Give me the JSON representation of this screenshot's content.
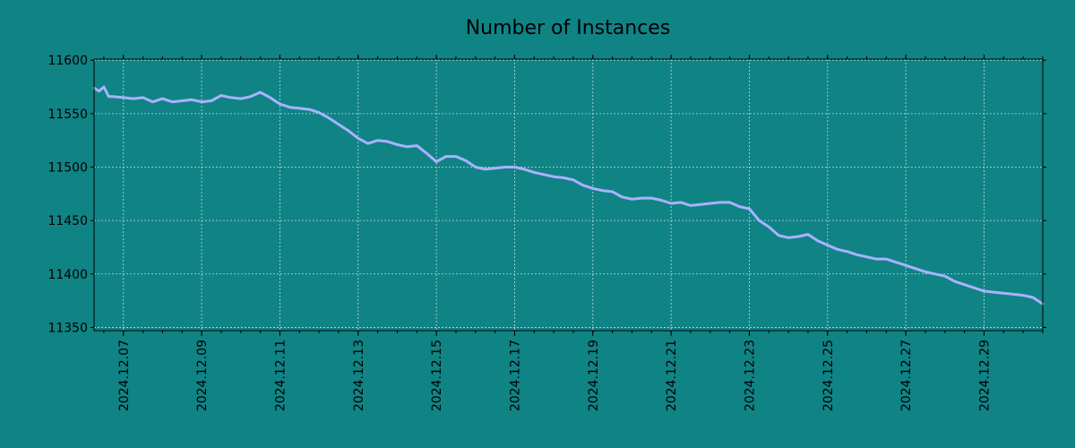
{
  "chart_data": {
    "type": "line",
    "title": "Number of Instances",
    "xlabel": "",
    "ylabel": "",
    "grid": true,
    "x_range": [
      "2024-12-06 06:00",
      "2024-12-30 12:00"
    ],
    "ylim": [
      11347,
      11601
    ],
    "y_ticks": [
      11350,
      11400,
      11450,
      11500,
      11550,
      11600
    ],
    "x_ticks": [
      "2024.12.07",
      "2024.12.09",
      "2024.12.11",
      "2024.12.13",
      "2024.12.15",
      "2024.12.17",
      "2024.12.19",
      "2024.12.21",
      "2024.12.23",
      "2024.12.25",
      "2024.12.27",
      "2024.12.29"
    ],
    "line_color": "#a9b2ff",
    "background_color": "#108385",
    "series": [
      {
        "x": [
          "2024-12-06 06:00",
          "2024-12-06 09:00",
          "2024-12-06 12:00",
          "2024-12-06 15:00",
          "2024-12-06 18:00",
          "2024-12-07 00:00",
          "2024-12-07 06:00",
          "2024-12-07 12:00",
          "2024-12-07 18:00",
          "2024-12-08 00:00",
          "2024-12-08 06:00",
          "2024-12-08 12:00",
          "2024-12-08 18:00",
          "2024-12-09 00:00",
          "2024-12-09 06:00",
          "2024-12-09 12:00",
          "2024-12-09 18:00",
          "2024-12-10 00:00",
          "2024-12-10 06:00",
          "2024-12-10 12:00",
          "2024-12-10 18:00",
          "2024-12-11 00:00",
          "2024-12-11 06:00",
          "2024-12-11 12:00",
          "2024-12-11 18:00",
          "2024-12-12 00:00",
          "2024-12-12 06:00",
          "2024-12-12 12:00",
          "2024-12-12 18:00",
          "2024-12-13 00:00",
          "2024-12-13 06:00",
          "2024-12-13 12:00",
          "2024-12-13 18:00",
          "2024-12-14 00:00",
          "2024-12-14 06:00",
          "2024-12-14 12:00",
          "2024-12-14 18:00",
          "2024-12-15 00:00",
          "2024-12-15 06:00",
          "2024-12-15 12:00",
          "2024-12-15 18:00",
          "2024-12-16 00:00",
          "2024-12-16 06:00",
          "2024-12-16 12:00",
          "2024-12-16 18:00",
          "2024-12-17 00:00",
          "2024-12-17 06:00",
          "2024-12-17 12:00",
          "2024-12-17 18:00",
          "2024-12-18 00:00",
          "2024-12-18 06:00",
          "2024-12-18 12:00",
          "2024-12-18 18:00",
          "2024-12-19 00:00",
          "2024-12-19 06:00",
          "2024-12-19 12:00",
          "2024-12-19 18:00",
          "2024-12-20 00:00",
          "2024-12-20 06:00",
          "2024-12-20 12:00",
          "2024-12-20 18:00",
          "2024-12-21 00:00",
          "2024-12-21 06:00",
          "2024-12-21 12:00",
          "2024-12-21 18:00",
          "2024-12-22 00:00",
          "2024-12-22 06:00",
          "2024-12-22 12:00",
          "2024-12-22 18:00",
          "2024-12-23 00:00",
          "2024-12-23 06:00",
          "2024-12-23 12:00",
          "2024-12-23 18:00",
          "2024-12-24 00:00",
          "2024-12-24 06:00",
          "2024-12-24 12:00",
          "2024-12-24 18:00",
          "2024-12-25 00:00",
          "2024-12-25 06:00",
          "2024-12-25 12:00",
          "2024-12-25 18:00",
          "2024-12-26 00:00",
          "2024-12-26 06:00",
          "2024-12-26 12:00",
          "2024-12-26 18:00",
          "2024-12-27 00:00",
          "2024-12-27 06:00",
          "2024-12-27 12:00",
          "2024-12-27 18:00",
          "2024-12-28 00:00",
          "2024-12-28 06:00",
          "2024-12-28 12:00",
          "2024-12-28 18:00",
          "2024-12-29 00:00",
          "2024-12-29 06:00",
          "2024-12-29 12:00",
          "2024-12-29 18:00",
          "2024-12-30 00:00",
          "2024-12-30 06:00",
          "2024-12-30 12:00"
        ],
        "values": [
          11574,
          11571,
          11575,
          11566,
          11566,
          11565,
          11564,
          11565,
          11561,
          11564,
          11561,
          11562,
          11563,
          11561,
          11562,
          11567,
          11565,
          11564,
          11566,
          11570,
          11565,
          11559,
          11556,
          11555,
          11554,
          11551,
          11546,
          11540,
          11534,
          11527,
          11522,
          11525,
          11524,
          11521,
          11519,
          11520,
          11513,
          11505,
          11510,
          11510,
          11506,
          11500,
          11498,
          11499,
          11500,
          11500,
          11498,
          11495,
          11493,
          11491,
          11490,
          11488,
          11483,
          11480,
          11478,
          11477,
          11472,
          11470,
          11471,
          11471,
          11469,
          11466,
          11467,
          11464,
          11465,
          11466,
          11467,
          11467,
          11463,
          11461,
          11450,
          11444,
          11436,
          11434,
          11435,
          11437,
          11431,
          11427,
          11423,
          11421,
          11418,
          11416,
          11414,
          11414,
          11411,
          11408,
          11405,
          11402,
          11400,
          11398,
          11393,
          11390,
          11387,
          11384,
          11383,
          11382,
          11381,
          11380,
          11378,
          11372
        ]
      }
    ]
  }
}
